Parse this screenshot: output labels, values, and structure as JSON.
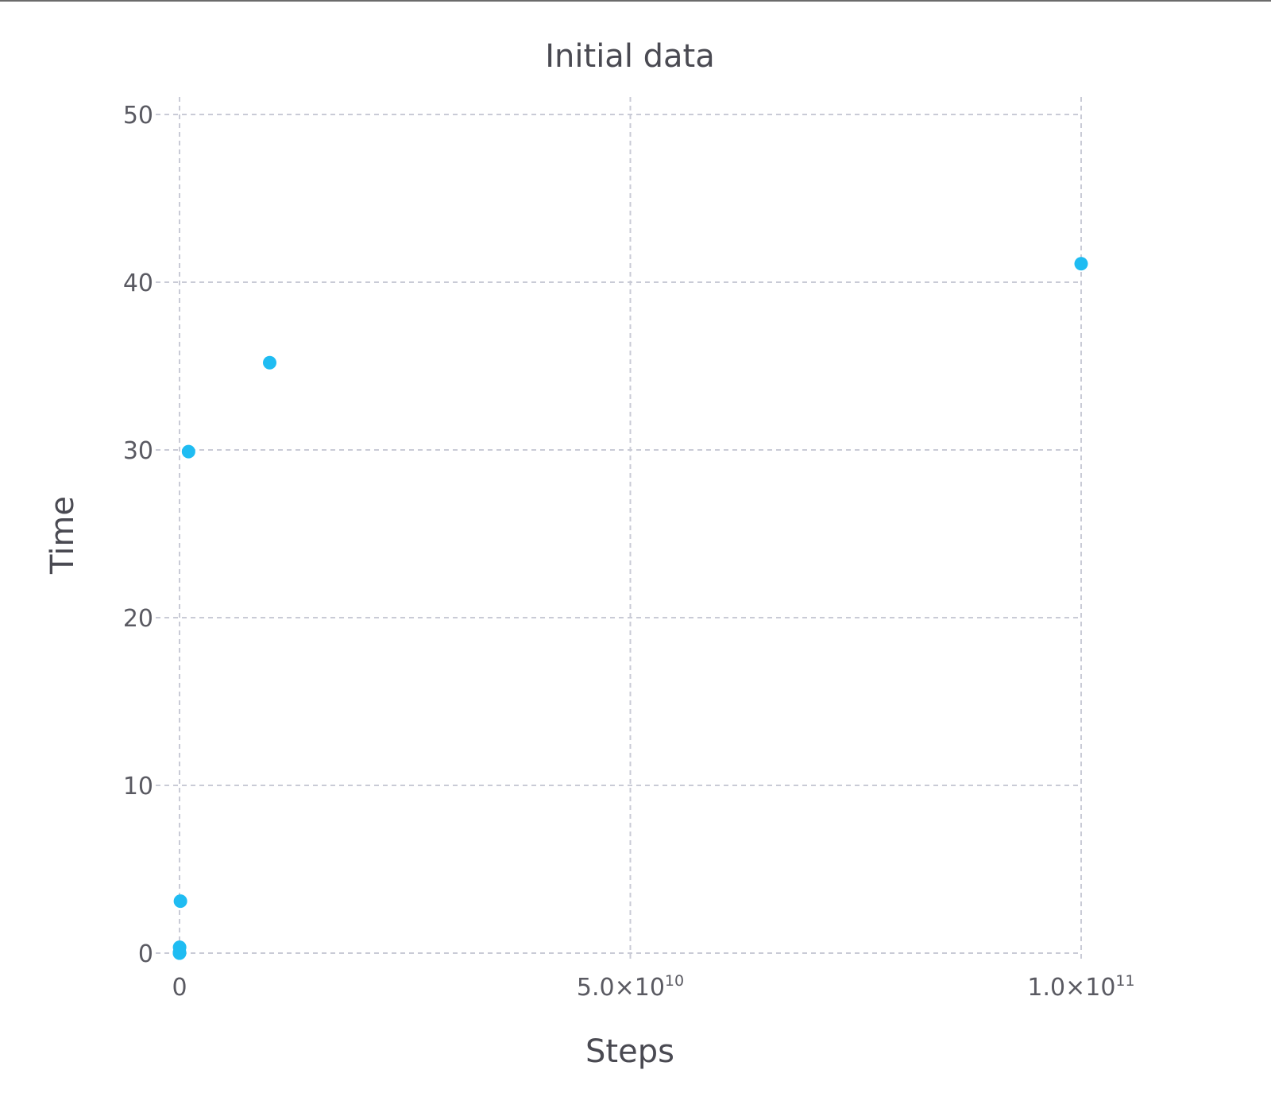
{
  "colors": {
    "marker": "#1fbcf2",
    "grid": "#c9cbd6",
    "text": "#4a4a52"
  },
  "chart_data": {
    "type": "scatter",
    "title": "Initial data",
    "xlabel": "Steps",
    "ylabel": "Time",
    "xlim": [
      0,
      100000000000
    ],
    "ylim": [
      0,
      50
    ],
    "grid": true,
    "x_ticks": [
      {
        "value": 0,
        "mantissa": "0",
        "exponent": ""
      },
      {
        "value": 50000000000,
        "mantissa": "5.0×10",
        "exponent": "10"
      },
      {
        "value": 100000000000,
        "mantissa": "1.0×10",
        "exponent": "11"
      }
    ],
    "y_ticks": [
      {
        "value": 0,
        "label": "0"
      },
      {
        "value": 10,
        "label": "10"
      },
      {
        "value": 20,
        "label": "20"
      },
      {
        "value": 30,
        "label": "30"
      },
      {
        "value": 40,
        "label": "40"
      },
      {
        "value": 50,
        "label": "50"
      }
    ],
    "series": [
      {
        "x": [
          0,
          1000,
          100000,
          10000000,
          100000000,
          1000000000,
          10000000000,
          100000000000
        ],
        "y": [
          0.0,
          0.0,
          0.05,
          0.35,
          3.1,
          29.9,
          35.2,
          41.1
        ]
      }
    ]
  }
}
